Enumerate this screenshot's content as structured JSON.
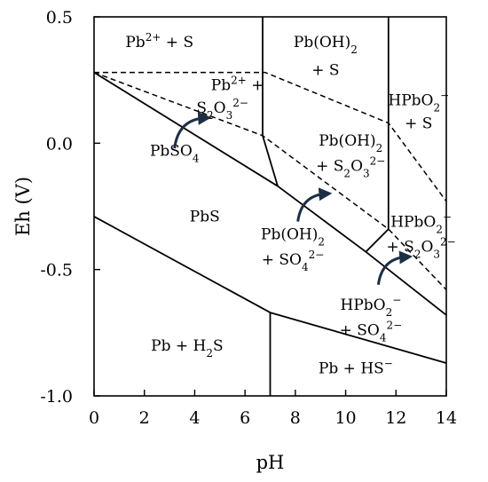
{
  "chart_data": {
    "type": "line",
    "xlabel": "pH",
    "ylabel": "Eh (V)",
    "xlim": [
      0,
      14
    ],
    "ylim": [
      -1.0,
      0.5
    ],
    "x_ticks": [
      0,
      2,
      4,
      6,
      8,
      10,
      12,
      14
    ],
    "y_ticks": [
      0.5,
      0.0,
      -0.5,
      -1.0
    ],
    "x_tick_labels": [
      "0",
      "2",
      "4",
      "6",
      "8",
      "10",
      "12",
      "14"
    ],
    "y_tick_labels": [
      "0.5",
      "0.0",
      "-0.5",
      "-1.0"
    ],
    "grid": false,
    "solid_boundaries": [
      {
        "id": "upper-sulfide-boundary",
        "points": [
          [
            0,
            0.28
          ],
          [
            7.3,
            -0.17
          ],
          [
            10.8,
            -0.43
          ],
          [
            14,
            -0.68
          ]
        ]
      },
      {
        "id": "lower-h2s-boundary",
        "points": [
          [
            0,
            -0.29
          ],
          [
            7.0,
            -0.67
          ],
          [
            14,
            -0.87
          ]
        ]
      },
      {
        "id": "vertical-pb2-pboh2",
        "points": [
          [
            6.7,
            0.5
          ],
          [
            6.7,
            0.03
          ]
        ]
      },
      {
        "id": "diagonal-pb2-pboh2",
        "points": [
          [
            6.7,
            0.03
          ],
          [
            7.3,
            -0.17
          ]
        ]
      },
      {
        "id": "vertical-pboh2-hpbo2",
        "points": [
          [
            11.7,
            0.5
          ],
          [
            11.7,
            -0.34
          ]
        ]
      },
      {
        "id": "diagonal-pboh2-hpbo2",
        "points": [
          [
            11.7,
            -0.34
          ],
          [
            10.8,
            -0.43
          ]
        ]
      },
      {
        "id": "vertical-pb-h2s-hs",
        "points": [
          [
            7.0,
            -0.67
          ],
          [
            7.0,
            -1.0
          ]
        ]
      }
    ],
    "dashed_boundaries": [
      {
        "id": "dashed-thiosulfate-top",
        "points": [
          [
            0,
            0.28
          ],
          [
            6.8,
            0.28
          ],
          [
            11.7,
            0.08
          ],
          [
            14,
            -0.23
          ]
        ]
      },
      {
        "id": "dashed-thiosulfate-bottom",
        "points": [
          [
            0,
            0.28
          ],
          [
            6.7,
            0.03
          ],
          [
            11.7,
            -0.34
          ],
          [
            14,
            -0.58
          ]
        ]
      }
    ],
    "annotations": [
      {
        "id": "pb2-s",
        "parts": [
          [
            "Pb",
            ""
          ],
          [
            "2+",
            "sup"
          ],
          [
            " + S",
            ""
          ]
        ],
        "x": 2.6,
        "y": 0.38
      },
      {
        "id": "pboh2-s-line1",
        "parts": [
          [
            "Pb(OH)",
            ""
          ],
          [
            "2",
            "sub"
          ]
        ],
        "x": 9.2,
        "y": 0.38
      },
      {
        "id": "pboh2-s-line2",
        "parts": [
          [
            "+ S",
            ""
          ]
        ],
        "x": 9.2,
        "y": 0.27
      },
      {
        "id": "hpbo2-s-line1",
        "parts": [
          [
            "HPbO",
            ""
          ],
          [
            "2",
            "sub"
          ],
          [
            "−",
            "sup"
          ]
        ],
        "x": 12.9,
        "y": 0.15
      },
      {
        "id": "hpbo2-s-line2",
        "parts": [
          [
            "+ S",
            ""
          ]
        ],
        "x": 12.9,
        "y": 0.06
      },
      {
        "id": "pb2-s2o3-line1",
        "parts": [
          [
            "Pb",
            ""
          ],
          [
            "2+",
            "sup"
          ],
          [
            " +",
            ""
          ]
        ],
        "x": 5.7,
        "y": 0.21
      },
      {
        "id": "pb2-s2o3-line2",
        "parts": [
          [
            "S",
            ""
          ],
          [
            "2",
            "sub"
          ],
          [
            "O",
            ""
          ],
          [
            "3",
            "sub"
          ],
          [
            "2−",
            "sup"
          ]
        ],
        "x": 5.1,
        "y": 0.12
      },
      {
        "id": "pbso4",
        "parts": [
          [
            "PbSO",
            ""
          ],
          [
            "4",
            "sub"
          ]
        ],
        "x": 3.2,
        "y": -0.05
      },
      {
        "id": "pboh2-s2o3-line1",
        "parts": [
          [
            "Pb(OH)",
            ""
          ],
          [
            "2",
            "sub"
          ]
        ],
        "x": 10.2,
        "y": -0.01
      },
      {
        "id": "pboh2-s2o3-line2",
        "parts": [
          [
            "+ S",
            ""
          ],
          [
            "2",
            "sub"
          ],
          [
            "O",
            ""
          ],
          [
            "3",
            "sub"
          ],
          [
            "2−",
            "sup"
          ]
        ],
        "x": 10.2,
        "y": -0.11
      },
      {
        "id": "pbs",
        "parts": [
          [
            "PbS",
            ""
          ]
        ],
        "x": 4.4,
        "y": -0.31
      },
      {
        "id": "pboh2-so4-line1",
        "parts": [
          [
            "Pb(OH)",
            ""
          ],
          [
            "2",
            "sub"
          ]
        ],
        "x": 7.9,
        "y": -0.38
      },
      {
        "id": "pboh2-so4-line2",
        "parts": [
          [
            "+ SO",
            ""
          ],
          [
            "4",
            "sub"
          ],
          [
            "2−",
            "sup"
          ]
        ],
        "x": 7.9,
        "y": -0.48
      },
      {
        "id": "hpbo2-s2o3-line1",
        "parts": [
          [
            "HPbO",
            ""
          ],
          [
            "2",
            "sub"
          ],
          [
            "−",
            "sup"
          ]
        ],
        "x": 13.0,
        "y": -0.33
      },
      {
        "id": "hpbo2-s2o3-line2",
        "parts": [
          [
            "+ S",
            ""
          ],
          [
            "2",
            "sub"
          ],
          [
            "O",
            ""
          ],
          [
            "3",
            "sub"
          ],
          [
            "2−",
            "sup"
          ]
        ],
        "x": 13.0,
        "y": -0.43
      },
      {
        "id": "hpbo2-so4-line1",
        "parts": [
          [
            "HPbO",
            ""
          ],
          [
            "2",
            "sub"
          ],
          [
            "−",
            "sup"
          ]
        ],
        "x": 11.0,
        "y": -0.66
      },
      {
        "id": "hpbo2-so4-line2",
        "parts": [
          [
            "+ SO",
            ""
          ],
          [
            "4",
            "sub"
          ],
          [
            "2−",
            "sup"
          ]
        ],
        "x": 11.0,
        "y": -0.76
      },
      {
        "id": "pb-h2s",
        "parts": [
          [
            "Pb + H",
            ""
          ],
          [
            "2",
            "sub"
          ],
          [
            "S",
            ""
          ]
        ],
        "x": 3.7,
        "y": -0.82
      },
      {
        "id": "pb-hs",
        "parts": [
          [
            "Pb + HS",
            ""
          ],
          [
            "−",
            "sup"
          ]
        ],
        "x": 10.4,
        "y": -0.91
      }
    ],
    "arrows": [
      {
        "id": "arrow-pbso4",
        "from": [
          3.2,
          -0.02
        ],
        "to": [
          4.4,
          0.1
        ],
        "color": "#1c2f45"
      },
      {
        "id": "arrow-pboh2-so4",
        "from": [
          8.1,
          -0.31
        ],
        "to": [
          9.2,
          -0.2
        ],
        "color": "#1c2f45"
      },
      {
        "id": "arrow-hpbo2-so4",
        "from": [
          11.3,
          -0.56
        ],
        "to": [
          12.4,
          -0.45
        ],
        "color": "#1c2f45"
      }
    ]
  }
}
